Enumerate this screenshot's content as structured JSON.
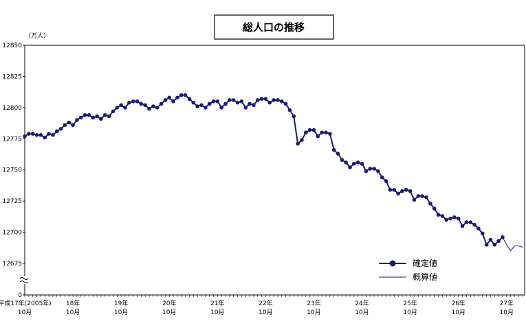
{
  "chart_data": {
    "type": "line",
    "title": "総人口の推移",
    "y_unit": "（万人）",
    "xlabel": "",
    "ylabel": "",
    "ylim": [
      0,
      12850
    ],
    "y_ticks": [
      "0",
      "12675",
      "12700",
      "12725",
      "12750",
      "12775",
      "12800",
      "12825",
      "12850"
    ],
    "x_tick_labels": [
      {
        "year": "平成17年(2005年)",
        "month": "10月"
      },
      {
        "year": "18年",
        "month": "10月"
      },
      {
        "year": "19年",
        "month": "10月"
      },
      {
        "year": "20年",
        "month": "10月"
      },
      {
        "year": "21年",
        "month": "10月"
      },
      {
        "year": "22年",
        "month": "10月"
      },
      {
        "year": "23年",
        "month": "10月"
      },
      {
        "year": "24年",
        "month": "10月"
      },
      {
        "year": "25年",
        "month": "10月"
      },
      {
        "year": "26年",
        "month": "10月"
      },
      {
        "year": "27年",
        "month": "10月"
      }
    ],
    "x_start": "2005-10",
    "legend_position": "bottom-right",
    "series": [
      {
        "name": "確定値",
        "color": "#1a1a7a",
        "marker": "circle",
        "values": [
          12777,
          12779,
          12779,
          12778,
          12778,
          12776,
          12779,
          12778,
          12781,
          12783,
          12786,
          12788,
          12786,
          12790,
          12792,
          12794,
          12794,
          12792,
          12793,
          12791,
          12794,
          12793,
          12797,
          12800,
          12802,
          12800,
          12804,
          12805,
          12805,
          12803,
          12802,
          12799,
          12801,
          12800,
          12803,
          12806,
          12808,
          12805,
          12808,
          12810,
          12810,
          12807,
          12804,
          12801,
          12802,
          12800,
          12803,
          12805,
          12805,
          12800,
          12803,
          12806,
          12806,
          12804,
          12805,
          12800,
          12803,
          12802,
          12806,
          12807,
          12807,
          12804,
          12806,
          12806,
          12805,
          12803,
          12798,
          12793,
          12771,
          12774,
          12780,
          12782,
          12782,
          12777,
          12780,
          12780,
          12779,
          12766,
          12763,
          12758,
          12756,
          12752,
          12755,
          12756,
          12755,
          12749,
          12751,
          12751,
          12749,
          12744,
          12741,
          12734,
          12734,
          12731,
          12733,
          12734,
          12733,
          12726,
          12729,
          12729,
          12728,
          12723,
          12719,
          12714,
          12713,
          12710,
          12711,
          12712,
          12711,
          12705,
          12708,
          12708,
          12706,
          12703,
          12699,
          12690,
          12694,
          12690,
          12693,
          12696
        ]
      },
      {
        "name": "概算値",
        "color": "#1a1a7a",
        "marker": "none",
        "start_index": 119,
        "values": [
          12696,
          12690,
          12685,
          12689,
          12689,
          12688
        ]
      }
    ]
  }
}
